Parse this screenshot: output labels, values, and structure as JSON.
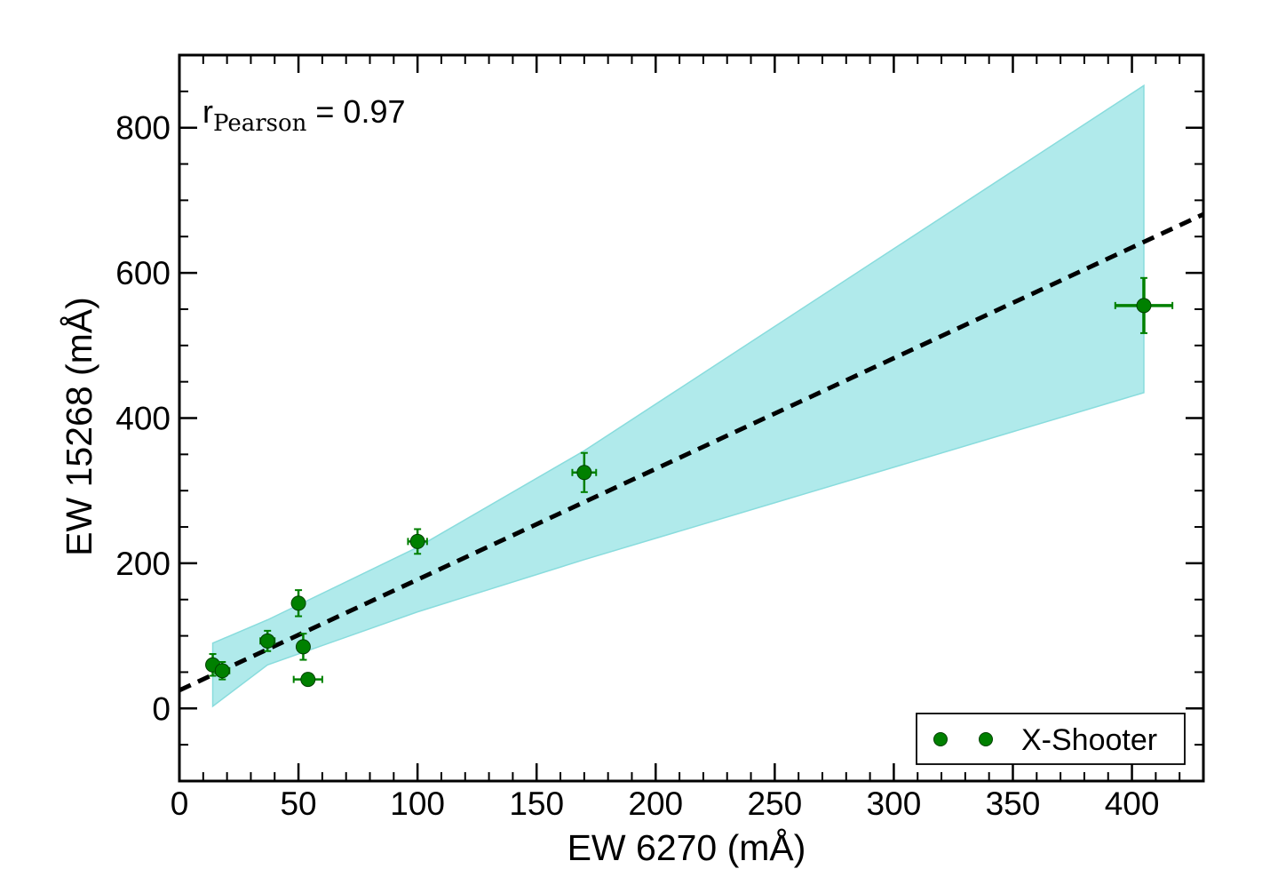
{
  "chart_data": {
    "type": "scatter",
    "title": "",
    "xlabel": "EW 6270 (mÅ)",
    "ylabel": "EW 15268 (mÅ)",
    "xlim": [
      0,
      430
    ],
    "ylim": [
      -100,
      900
    ],
    "x_ticks": [
      0,
      50,
      100,
      150,
      200,
      250,
      300,
      350,
      400
    ],
    "x_tick_labels": [
      "0",
      "50",
      "100",
      "150",
      "200",
      "250",
      "300",
      "350",
      "400"
    ],
    "y_ticks": [
      0,
      200,
      400,
      600,
      800
    ],
    "y_tick_labels": [
      "0",
      "200",
      "400",
      "600",
      "800"
    ],
    "x_minor_step": 10,
    "y_minor_step": 50,
    "annotation": {
      "main": "r",
      "subscript": "Pearson",
      "value": "= 0.97"
    },
    "legend": {
      "label": "X-Shooter",
      "location": "lower right"
    },
    "colors": {
      "points": "#008000",
      "band": "#b0eaeb",
      "band_edge": "#89dcdd",
      "fit": "#000000"
    },
    "fit_line": {
      "slope": 1.525,
      "intercept": 25,
      "style": "dashed"
    },
    "confidence_band": {
      "upper": [
        [
          14,
          90
        ],
        [
          37,
          122
        ],
        [
          100,
          222
        ],
        [
          170,
          355
        ],
        [
          405,
          858
        ]
      ],
      "lower": [
        [
          14,
          3
        ],
        [
          37,
          60
        ],
        [
          100,
          133
        ],
        [
          170,
          205
        ],
        [
          405,
          435
        ]
      ]
    },
    "series": [
      {
        "name": "X-Shooter",
        "points": [
          {
            "x": 14,
            "y": 60,
            "xerr": 2,
            "yerr": 15
          },
          {
            "x": 18,
            "y": 52,
            "xerr": 3,
            "yerr": 12
          },
          {
            "x": 37,
            "y": 93,
            "xerr": 3,
            "yerr": 14
          },
          {
            "x": 50,
            "y": 145,
            "xerr": 2,
            "yerr": 18
          },
          {
            "x": 52,
            "y": 85,
            "xerr": 2,
            "yerr": 18
          },
          {
            "x": 54,
            "y": 40,
            "xerr": 6,
            "yerr": 8
          },
          {
            "x": 100,
            "y": 230,
            "xerr": 4,
            "yerr": 17
          },
          {
            "x": 170,
            "y": 325,
            "xerr": 5,
            "yerr": 27
          },
          {
            "x": 405,
            "y": 555,
            "xerr": 12,
            "yerr": 38
          }
        ]
      }
    ]
  }
}
